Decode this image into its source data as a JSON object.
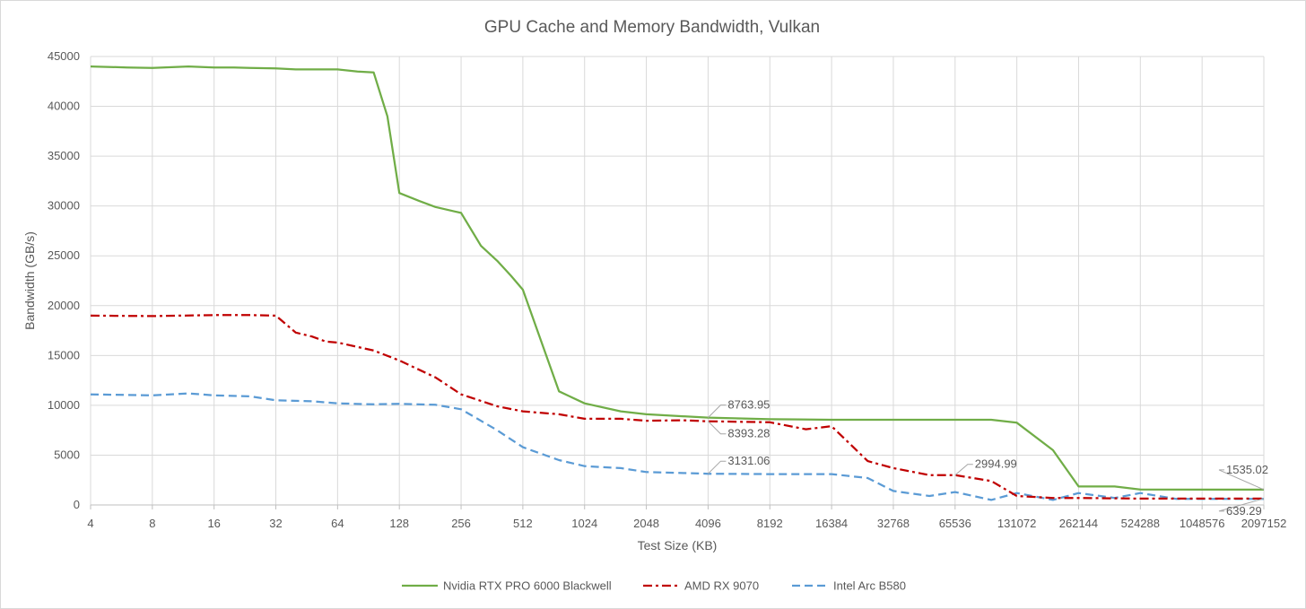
{
  "chart_data": {
    "type": "line",
    "title": "GPU Cache and Memory Bandwidth, Vulkan",
    "xlabel": "Test Size (KB)",
    "ylabel": "Bandwidth (GB/s)",
    "ylim": [
      0,
      45000
    ],
    "yticks": [
      0,
      5000,
      10000,
      15000,
      20000,
      25000,
      30000,
      35000,
      40000,
      45000
    ],
    "x_scale": "log2",
    "categories": [
      "4",
      "8",
      "16",
      "32",
      "64",
      "128",
      "256",
      "512",
      "1024",
      "2048",
      "4096",
      "8192",
      "16384",
      "32768",
      "65536",
      "131072",
      "262144",
      "524288",
      "1048576",
      "2097152"
    ],
    "grid": true,
    "legend_position": "bottom",
    "series": [
      {
        "name": "Nvidia RTX PRO 6000 Blackwell",
        "color": "#70ad47",
        "dash": "solid",
        "points": [
          [
            4,
            44000
          ],
          [
            6,
            43900
          ],
          [
            8,
            43850
          ],
          [
            12,
            44000
          ],
          [
            16,
            43900
          ],
          [
            20,
            43900
          ],
          [
            24,
            43850
          ],
          [
            32,
            43800
          ],
          [
            40,
            43700
          ],
          [
            48,
            43700
          ],
          [
            64,
            43700
          ],
          [
            80,
            43500
          ],
          [
            96,
            43400
          ],
          [
            112,
            39000
          ],
          [
            128,
            31300
          ],
          [
            160,
            30500
          ],
          [
            192,
            29900
          ],
          [
            256,
            29300
          ],
          [
            320,
            26000
          ],
          [
            384,
            24500
          ],
          [
            448,
            23000
          ],
          [
            512,
            21600
          ],
          [
            768,
            11400
          ],
          [
            1024,
            10200
          ],
          [
            1536,
            9400
          ],
          [
            2048,
            9100
          ],
          [
            3072,
            8900
          ],
          [
            4096,
            8763.95
          ],
          [
            8192,
            8600
          ],
          [
            16384,
            8550
          ],
          [
            32768,
            8550
          ],
          [
            65536,
            8550
          ],
          [
            98304,
            8550
          ],
          [
            131072,
            8250
          ],
          [
            196608,
            5500
          ],
          [
            262144,
            1850
          ],
          [
            393216,
            1850
          ],
          [
            524288,
            1550
          ],
          [
            1048576,
            1535.02
          ],
          [
            2097152,
            1535.02
          ]
        ]
      },
      {
        "name": "AMD RX 9070",
        "color": "#c00000",
        "dash": "dashdot",
        "points": [
          [
            4,
            19000
          ],
          [
            8,
            18950
          ],
          [
            16,
            19050
          ],
          [
            24,
            19050
          ],
          [
            32,
            19000
          ],
          [
            40,
            17300
          ],
          [
            48,
            16900
          ],
          [
            56,
            16400
          ],
          [
            64,
            16300
          ],
          [
            96,
            15500
          ],
          [
            128,
            14500
          ],
          [
            192,
            12800
          ],
          [
            256,
            11100
          ],
          [
            384,
            9900
          ],
          [
            512,
            9400
          ],
          [
            768,
            9100
          ],
          [
            1024,
            8650
          ],
          [
            1536,
            8650
          ],
          [
            2048,
            8450
          ],
          [
            3072,
            8500
          ],
          [
            4096,
            8393.28
          ],
          [
            8192,
            8300
          ],
          [
            12288,
            7600
          ],
          [
            16384,
            7900
          ],
          [
            24576,
            4400
          ],
          [
            32768,
            3700
          ],
          [
            49152,
            3000
          ],
          [
            65536,
            2994.99
          ],
          [
            98304,
            2400
          ],
          [
            131072,
            900
          ],
          [
            196608,
            700
          ],
          [
            262144,
            700
          ],
          [
            524288,
            639.29
          ],
          [
            1048576,
            639.29
          ],
          [
            2097152,
            639.29
          ]
        ]
      },
      {
        "name": "Intel Arc B580",
        "color": "#5b9bd5",
        "dash": "dashed",
        "points": [
          [
            4,
            11100
          ],
          [
            8,
            11000
          ],
          [
            12,
            11200
          ],
          [
            16,
            11000
          ],
          [
            24,
            10900
          ],
          [
            32,
            10500
          ],
          [
            48,
            10400
          ],
          [
            64,
            10200
          ],
          [
            96,
            10100
          ],
          [
            128,
            10150
          ],
          [
            192,
            10050
          ],
          [
            256,
            9600
          ],
          [
            384,
            7500
          ],
          [
            512,
            5800
          ],
          [
            768,
            4500
          ],
          [
            1024,
            3900
          ],
          [
            1536,
            3700
          ],
          [
            2048,
            3300
          ],
          [
            3072,
            3200
          ],
          [
            4096,
            3131.06
          ],
          [
            8192,
            3100
          ],
          [
            16384,
            3100
          ],
          [
            24576,
            2700
          ],
          [
            32768,
            1400
          ],
          [
            49152,
            900
          ],
          [
            65536,
            1300
          ],
          [
            98304,
            500
          ],
          [
            131072,
            1200
          ],
          [
            196608,
            500
          ],
          [
            262144,
            1200
          ],
          [
            393216,
            700
          ],
          [
            524288,
            1200
          ],
          [
            786432,
            600
          ],
          [
            1048576,
            600
          ],
          [
            2097152,
            600
          ]
        ]
      }
    ],
    "annotations": [
      {
        "text": "8763.95",
        "x": 4096,
        "y": 8763.95
      },
      {
        "text": "8393.28",
        "x": 4096,
        "y": 8393.28
      },
      {
        "text": "3131.06",
        "x": 4096,
        "y": 3131.06
      },
      {
        "text": "2994.99",
        "x": 65536,
        "y": 2994.99
      },
      {
        "text": "1535.02",
        "x": 2097152,
        "y": 1535.02
      },
      {
        "text": "639.29",
        "x": 2097152,
        "y": 639.29
      }
    ]
  }
}
